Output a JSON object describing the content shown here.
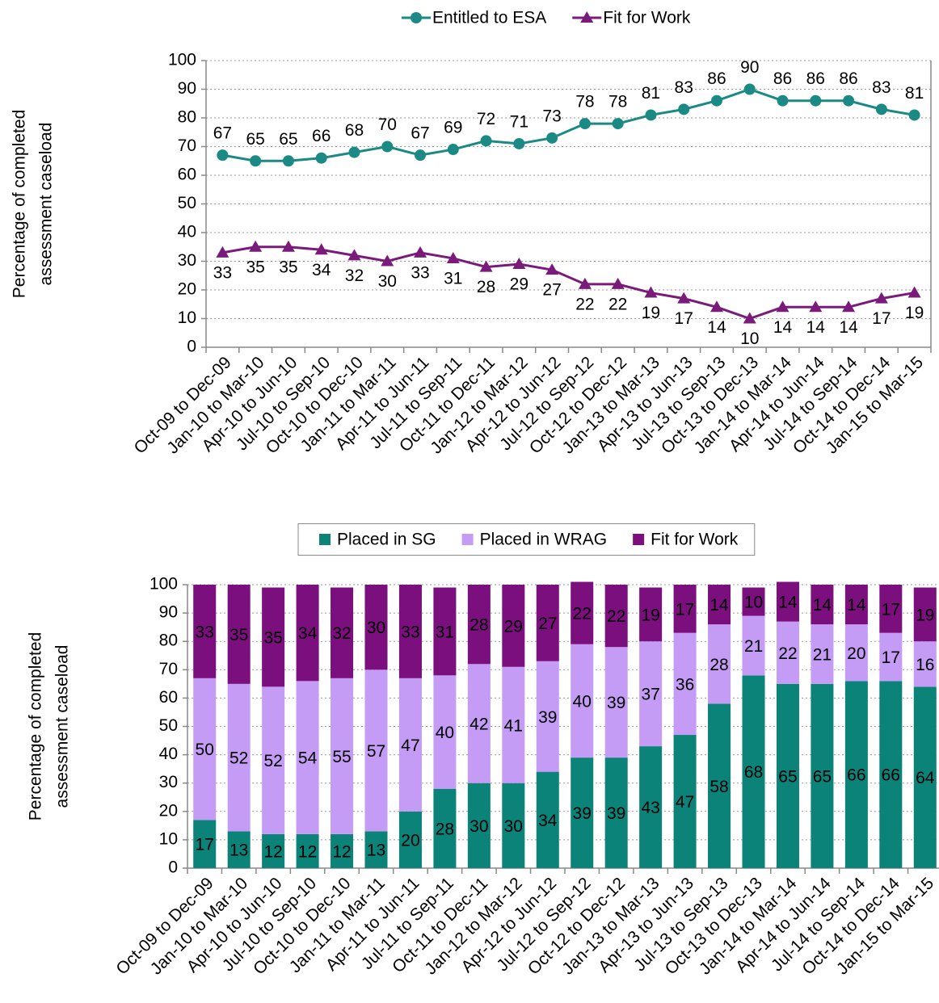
{
  "chart_data": [
    {
      "type": "line",
      "ylabel": [
        "Percentage of completed",
        "assessment caseload"
      ],
      "categories": [
        "Oct-09 to Dec-09",
        "Jan-10 to Mar-10",
        "Apr-10 to Jun-10",
        "Jul-10 to Sep-10",
        "Oct-10 to Dec-10",
        "Jan-11 to Mar-11",
        "Apr-11 to Jun-11",
        "Jul-11 to Sep-11",
        "Oct-11 to Dec-11",
        "Jan-12 to Mar-12",
        "Apr-12 to Jun-12",
        "Jul-12 to Sep-12",
        "Oct-12 to Dec-12",
        "Jan-13 to Mar-13",
        "Apr-13 to Jun-13",
        "Jul-13 to Sep-13",
        "Oct-13 to Dec-13",
        "Jan-14 to Mar-14",
        "Apr-14 to Jun-14",
        "Jul-14 to Sep-14",
        "Oct-14 to Dec-14",
        "Jan-15 to Mar-15"
      ],
      "series": [
        {
          "name": "Entitled to ESA",
          "color": "#1b8a84",
          "marker": "circle",
          "values": [
            67,
            65,
            65,
            66,
            68,
            70,
            67,
            69,
            72,
            71,
            73,
            78,
            78,
            81,
            83,
            86,
            90,
            86,
            86,
            86,
            83,
            81
          ]
        },
        {
          "name": "Fit for Work",
          "color": "#7a1a7a",
          "marker": "triangle",
          "values": [
            33,
            35,
            35,
            34,
            32,
            30,
            33,
            31,
            28,
            29,
            27,
            22,
            22,
            19,
            17,
            14,
            10,
            14,
            14,
            14,
            17,
            19
          ]
        }
      ],
      "ylim": [
        0,
        100
      ],
      "yticks": [
        0,
        10,
        20,
        30,
        40,
        50,
        60,
        70,
        80,
        90,
        100
      ],
      "grid": true,
      "legend": "top"
    },
    {
      "type": "stacked_bar",
      "ylabel": [
        "Percentage of completed",
        "assessment caseload"
      ],
      "categories": [
        "Oct-09 to Dec-09",
        "Jan-10 to Mar-10",
        "Apr-10 to Jun-10",
        "Jul-10 to Sep-10",
        "Oct-10 to Dec-10",
        "Jan-11 to Mar-11",
        "Apr-11 to Jun-11",
        "Jul-11 to Sep-11",
        "Oct-11 to Dec-11",
        "Jan-12 to Mar-12",
        "Apr-12 to Jun-12",
        "Jul-12 to Sep-12",
        "Oct-12 to Dec-12",
        "Jan-13 to Mar-13",
        "Apr-13 to Jun-13",
        "Jul-13 to Sep-13",
        "Oct-13 to Dec-13",
        "Jan-14 to Mar-14",
        "Apr-14 to Jun-14",
        "Jul-14 to Sep-14",
        "Oct-14 to Dec-14",
        "Jan-15 to Mar-15"
      ],
      "series": [
        {
          "name": "Placed in SG",
          "color": "#0b8379",
          "values": [
            17,
            13,
            12,
            12,
            12,
            13,
            20,
            28,
            30,
            30,
            34,
            39,
            39,
            43,
            47,
            58,
            68,
            65,
            65,
            66,
            66,
            64
          ]
        },
        {
          "name": "Placed in WRAG",
          "color": "#c49cf6",
          "values": [
            50,
            52,
            52,
            54,
            55,
            57,
            47,
            40,
            42,
            41,
            39,
            40,
            39,
            37,
            36,
            28,
            21,
            22,
            21,
            20,
            17,
            16
          ]
        },
        {
          "name": "Fit for Work",
          "color": "#7b0f7e",
          "values": [
            33,
            35,
            35,
            34,
            32,
            30,
            33,
            31,
            28,
            29,
            27,
            22,
            22,
            19,
            17,
            14,
            10,
            14,
            14,
            14,
            17,
            19
          ]
        }
      ],
      "ylim": [
        0,
        100
      ],
      "yticks": [
        0,
        10,
        20,
        30,
        40,
        50,
        60,
        70,
        80,
        90,
        100
      ],
      "grid": true,
      "legend": "top"
    }
  ]
}
